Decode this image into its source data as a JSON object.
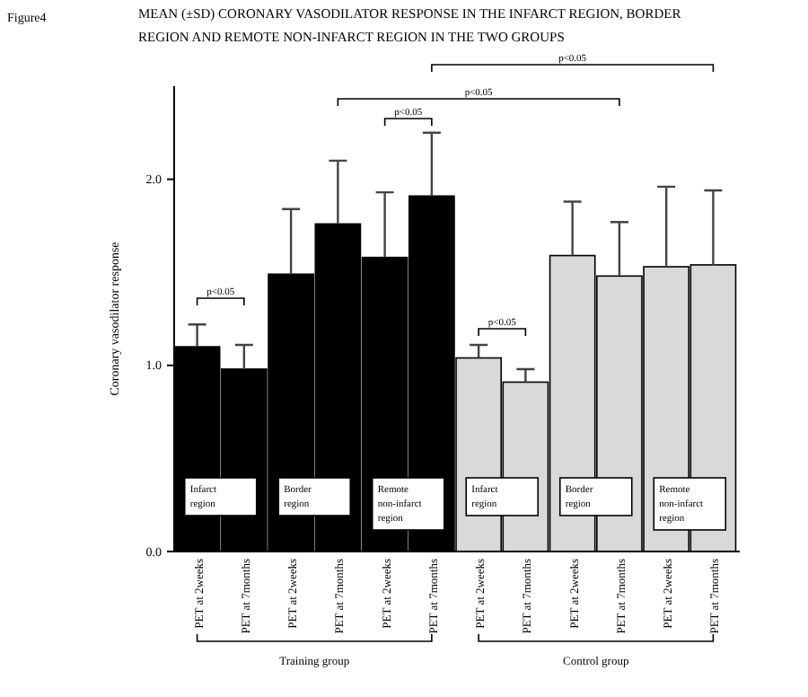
{
  "chart_data": {
    "type": "bar",
    "title": "MEAN (±SD) CORONARY VASODILATOR RESPONSE IN THE INFARCT REGION, BORDER REGION AND REMOTE NON-INFARCT REGION IN THE TWO GROUPS",
    "ylabel": "Coronary vasodilator response",
    "categories": [
      "PET at 2weeks",
      "PET at 7months",
      "PET at 2weeks",
      "PET at 7months",
      "PET at 2weeks",
      "PET at 7months",
      "PET at 2weeks",
      "PET at 7months",
      "PET at 2weeks",
      "PET at 7months",
      "PET at 2weeks",
      "PET at 7months"
    ],
    "values": [
      1.1,
      0.98,
      1.49,
      1.76,
      1.58,
      1.91,
      1.04,
      0.91,
      1.59,
      1.48,
      1.53,
      1.54
    ],
    "errors": [
      [
        1.1,
        1.22
      ],
      [
        0.98,
        1.11
      ],
      [
        1.49,
        1.84
      ],
      [
        1.76,
        2.1
      ],
      [
        1.58,
        1.93
      ],
      [
        1.91,
        2.25
      ],
      [
        1.04,
        1.11
      ],
      [
        0.91,
        0.98
      ],
      [
        1.59,
        1.88
      ],
      [
        1.48,
        1.77
      ],
      [
        1.53,
        1.96
      ],
      [
        1.54,
        1.94
      ]
    ],
    "colors": [
      "#000000",
      "#000000",
      "#000000",
      "#000000",
      "#000000",
      "#000000",
      "#d9d9d9",
      "#d9d9d9",
      "#d9d9d9",
      "#d9d9d9",
      "#d9d9d9",
      "#d9d9d9"
    ],
    "ylim": [
      0,
      2.5
    ],
    "yticks": [
      {
        "value": 0,
        "label": "0.0"
      },
      {
        "value": 1,
        "label": "1.0"
      },
      {
        "value": 2,
        "label": "2.0"
      }
    ],
    "annotations": [
      "Figure4",
      "p<0.05",
      "p<0.05",
      "p<0.05",
      "p<0.05",
      "p<0.05",
      "Infarct region",
      "Border region",
      "Remote non-infarct region",
      "Infarct region",
      "Border region",
      "Remote non-infarct region",
      "Training group",
      "Control group"
    ]
  }
}
